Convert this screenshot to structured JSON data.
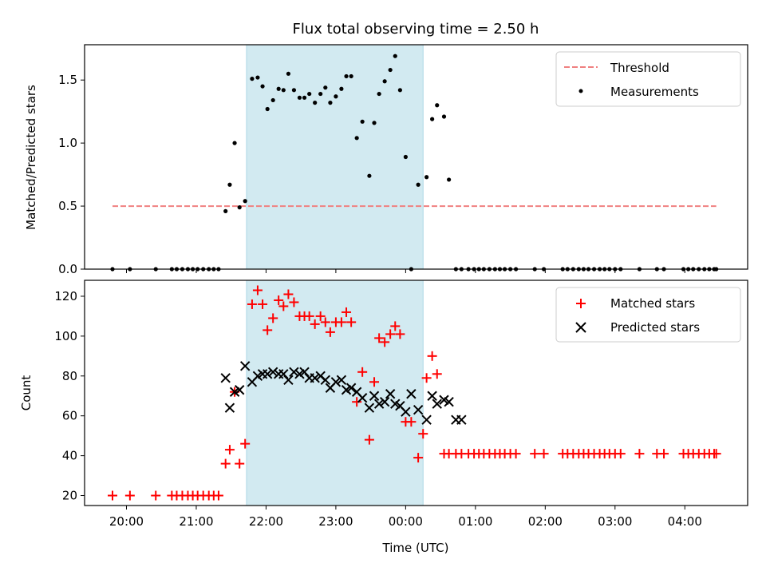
{
  "colors": {
    "matched": "#ff0000",
    "predicted": "#000000",
    "measurements": "#000000",
    "threshold": "#f08080",
    "shade": "#add8e6"
  },
  "chart_data": [
    {
      "type": "scatter",
      "title": "Flux total observing time = 2.50 h",
      "xlabel": "",
      "ylabel": "Matched/Predicted stars",
      "xlim": [
        19.4,
        28.9
      ],
      "ylim": [
        0,
        1.78
      ],
      "yticks": [
        0.0,
        0.5,
        1.0,
        1.5
      ],
      "ytick_labels": [
        "0.0",
        "0.5",
        "1.0",
        "1.5"
      ],
      "shaded_span": [
        21.72,
        24.25
      ],
      "legend_position": "upper right",
      "series": [
        {
          "name": "Threshold",
          "kind": "dashed-line",
          "x": [
            19.8,
            28.45
          ],
          "y": [
            0.5,
            0.5
          ]
        },
        {
          "name": "Measurements",
          "kind": "dot",
          "x": [
            19.8,
            20.05,
            20.42,
            20.65,
            20.72,
            20.8,
            20.88,
            20.95,
            21.02,
            21.1,
            21.18,
            21.25,
            21.32,
            21.42,
            21.48,
            21.55,
            21.62,
            21.7,
            21.8,
            21.88,
            21.95,
            22.02,
            22.1,
            22.18,
            22.25,
            22.32,
            22.4,
            22.48,
            22.55,
            22.62,
            22.7,
            22.78,
            22.85,
            22.92,
            23.0,
            23.08,
            23.15,
            23.22,
            23.3,
            23.38,
            23.48,
            23.55,
            23.62,
            23.7,
            23.78,
            23.85,
            23.92,
            24.0,
            24.08,
            24.18,
            24.3,
            24.38,
            24.45,
            24.55,
            24.62,
            24.72,
            24.8,
            24.9,
            24.98,
            25.05,
            25.12,
            25.2,
            25.28,
            25.35,
            25.42,
            25.5,
            25.58,
            25.85,
            25.98,
            26.25,
            26.32,
            26.4,
            26.48,
            26.55,
            26.62,
            26.7,
            26.78,
            26.85,
            26.92,
            27.0,
            27.08,
            27.35,
            27.6,
            27.7,
            27.98,
            28.05,
            28.12,
            28.2,
            28.28,
            28.35,
            28.42,
            28.45
          ],
          "y": [
            0,
            0,
            0,
            0,
            0,
            0,
            0,
            0,
            0,
            0,
            0,
            0,
            0,
            0.46,
            0.67,
            1.0,
            0.49,
            0.54,
            1.51,
            1.52,
            1.45,
            1.27,
            1.34,
            1.43,
            1.42,
            1.55,
            1.42,
            1.36,
            1.36,
            1.39,
            1.32,
            1.39,
            1.44,
            1.32,
            1.37,
            1.43,
            1.53,
            1.53,
            1.04,
            1.17,
            0.74,
            1.16,
            1.39,
            1.49,
            1.58,
            1.69,
            1.42,
            0.89,
            0,
            0.67,
            0.73,
            1.19,
            1.3,
            1.21,
            0.71,
            0,
            0,
            0,
            0,
            0,
            0,
            0,
            0,
            0,
            0,
            0,
            0,
            0,
            0,
            0,
            0,
            0,
            0,
            0,
            0,
            0,
            0,
            0,
            0,
            0,
            0,
            0,
            0,
            0,
            0,
            0,
            0,
            0,
            0,
            0,
            0,
            0
          ]
        }
      ]
    },
    {
      "type": "scatter",
      "title": "",
      "xlabel": "Time (UTC)",
      "ylabel": "Count",
      "xlim": [
        19.4,
        28.9
      ],
      "ylim": [
        15,
        128
      ],
      "yticks": [
        20,
        40,
        60,
        80,
        100,
        120
      ],
      "ytick_labels": [
        "20",
        "40",
        "60",
        "80",
        "100",
        "120"
      ],
      "xticks": [
        20,
        21,
        22,
        23,
        24,
        25,
        26,
        27,
        28
      ],
      "xtick_labels": [
        "20:00",
        "21:00",
        "22:00",
        "23:00",
        "00:00",
        "01:00",
        "02:00",
        "03:00",
        "04:00"
      ],
      "shaded_span": [
        21.72,
        24.25
      ],
      "legend_position": "upper right",
      "series": [
        {
          "name": "Matched stars",
          "kind": "plus",
          "x": [
            19.8,
            20.05,
            20.42,
            20.65,
            20.72,
            20.8,
            20.88,
            20.95,
            21.02,
            21.1,
            21.18,
            21.25,
            21.32,
            21.42,
            21.48,
            21.55,
            21.62,
            21.7,
            21.8,
            21.88,
            21.95,
            22.02,
            22.1,
            22.18,
            22.25,
            22.32,
            22.4,
            22.48,
            22.55,
            22.62,
            22.7,
            22.78,
            22.85,
            22.92,
            23.0,
            23.08,
            23.15,
            23.22,
            23.3,
            23.38,
            23.48,
            23.55,
            23.62,
            23.7,
            23.78,
            23.85,
            23.92,
            24.0,
            24.08,
            24.18,
            24.25,
            24.3,
            24.38,
            24.45,
            24.55,
            24.62,
            24.72,
            24.8,
            24.9,
            24.98,
            25.05,
            25.12,
            25.2,
            25.28,
            25.35,
            25.42,
            25.5,
            25.58,
            25.85,
            25.98,
            26.25,
            26.32,
            26.4,
            26.48,
            26.55,
            26.62,
            26.7,
            26.78,
            26.85,
            26.92,
            27.0,
            27.08,
            27.35,
            27.6,
            27.7,
            27.98,
            28.05,
            28.12,
            28.2,
            28.28,
            28.35,
            28.42,
            28.45
          ],
          "y": [
            20,
            20,
            20,
            20,
            20,
            20,
            20,
            20,
            20,
            20,
            20,
            20,
            20,
            36,
            43,
            72,
            36,
            46,
            116,
            123,
            116,
            103,
            109,
            118,
            115,
            121,
            117,
            110,
            110,
            110,
            106,
            110,
            107,
            102,
            107,
            107,
            112,
            107,
            67,
            82,
            48,
            77,
            99,
            97,
            101,
            105,
            101,
            57,
            57,
            39,
            51,
            79,
            90,
            81,
            41,
            41,
            41,
            41,
            41,
            41,
            41,
            41,
            41,
            41,
            41,
            41,
            41,
            41,
            41,
            41,
            41,
            41,
            41,
            41,
            41,
            41,
            41,
            41,
            41,
            41,
            41,
            41,
            41,
            41,
            41,
            41,
            41,
            41,
            41,
            41,
            41,
            41,
            41
          ]
        },
        {
          "name": "Predicted stars",
          "kind": "x",
          "x": [
            21.42,
            21.48,
            21.55,
            21.62,
            21.7,
            21.8,
            21.88,
            21.95,
            22.02,
            22.1,
            22.18,
            22.25,
            22.32,
            22.4,
            22.48,
            22.55,
            22.62,
            22.7,
            22.78,
            22.85,
            22.92,
            23.0,
            23.08,
            23.15,
            23.22,
            23.3,
            23.38,
            23.48,
            23.55,
            23.62,
            23.7,
            23.78,
            23.85,
            23.92,
            24.0,
            24.08,
            24.18,
            24.3,
            24.38,
            24.45,
            24.55,
            24.62,
            24.72,
            24.8
          ],
          "y": [
            79,
            64,
            72,
            73,
            85,
            77,
            80,
            81,
            81,
            82,
            81,
            81,
            78,
            82,
            81,
            82,
            79,
            79,
            80,
            78,
            74,
            77,
            78,
            73,
            74,
            72,
            69,
            64,
            70,
            66,
            67,
            71,
            66,
            65,
            62,
            71,
            63,
            58,
            70,
            66,
            68,
            67,
            58,
            58
          ]
        }
      ]
    }
  ]
}
